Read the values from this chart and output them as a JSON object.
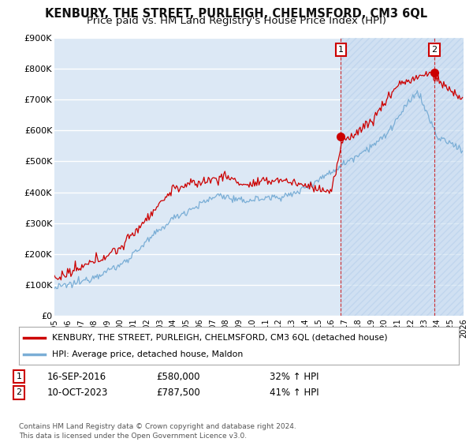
{
  "title": "KENBURY, THE STREET, PURLEIGH, CHELMSFORD, CM3 6QL",
  "subtitle": "Price paid vs. HM Land Registry's House Price Index (HPI)",
  "title_fontsize": 10.5,
  "subtitle_fontsize": 9.5,
  "background_color": "#ffffff",
  "plot_bg_color": "#dce8f5",
  "grid_color": "#ffffff",
  "hatch_bg_color": "#c8d8ec",
  "ylim": [
    0,
    900000
  ],
  "yticks": [
    0,
    100000,
    200000,
    300000,
    400000,
    500000,
    600000,
    700000,
    800000,
    900000
  ],
  "ytick_labels": [
    "£0",
    "£100K",
    "£200K",
    "£300K",
    "£400K",
    "£500K",
    "£600K",
    "£700K",
    "£800K",
    "£900K"
  ],
  "sale1_date": "16-SEP-2016",
  "sale1_price": 580000,
  "sale1_hpi": "32% ↑ HPI",
  "sale1_x": 2016.71,
  "sale2_date": "10-OCT-2023",
  "sale2_price": 787500,
  "sale2_hpi": "41% ↑ HPI",
  "sale2_x": 2023.78,
  "legend_line1": "KENBURY, THE STREET, PURLEIGH, CHELMSFORD, CM3 6QL (detached house)",
  "legend_line2": "HPI: Average price, detached house, Maldon",
  "footnote": "Contains HM Land Registry data © Crown copyright and database right 2024.\nThis data is licensed under the Open Government Licence v3.0.",
  "red_color": "#cc0000",
  "blue_color": "#7aaed6",
  "dashed_color": "#cc0000"
}
